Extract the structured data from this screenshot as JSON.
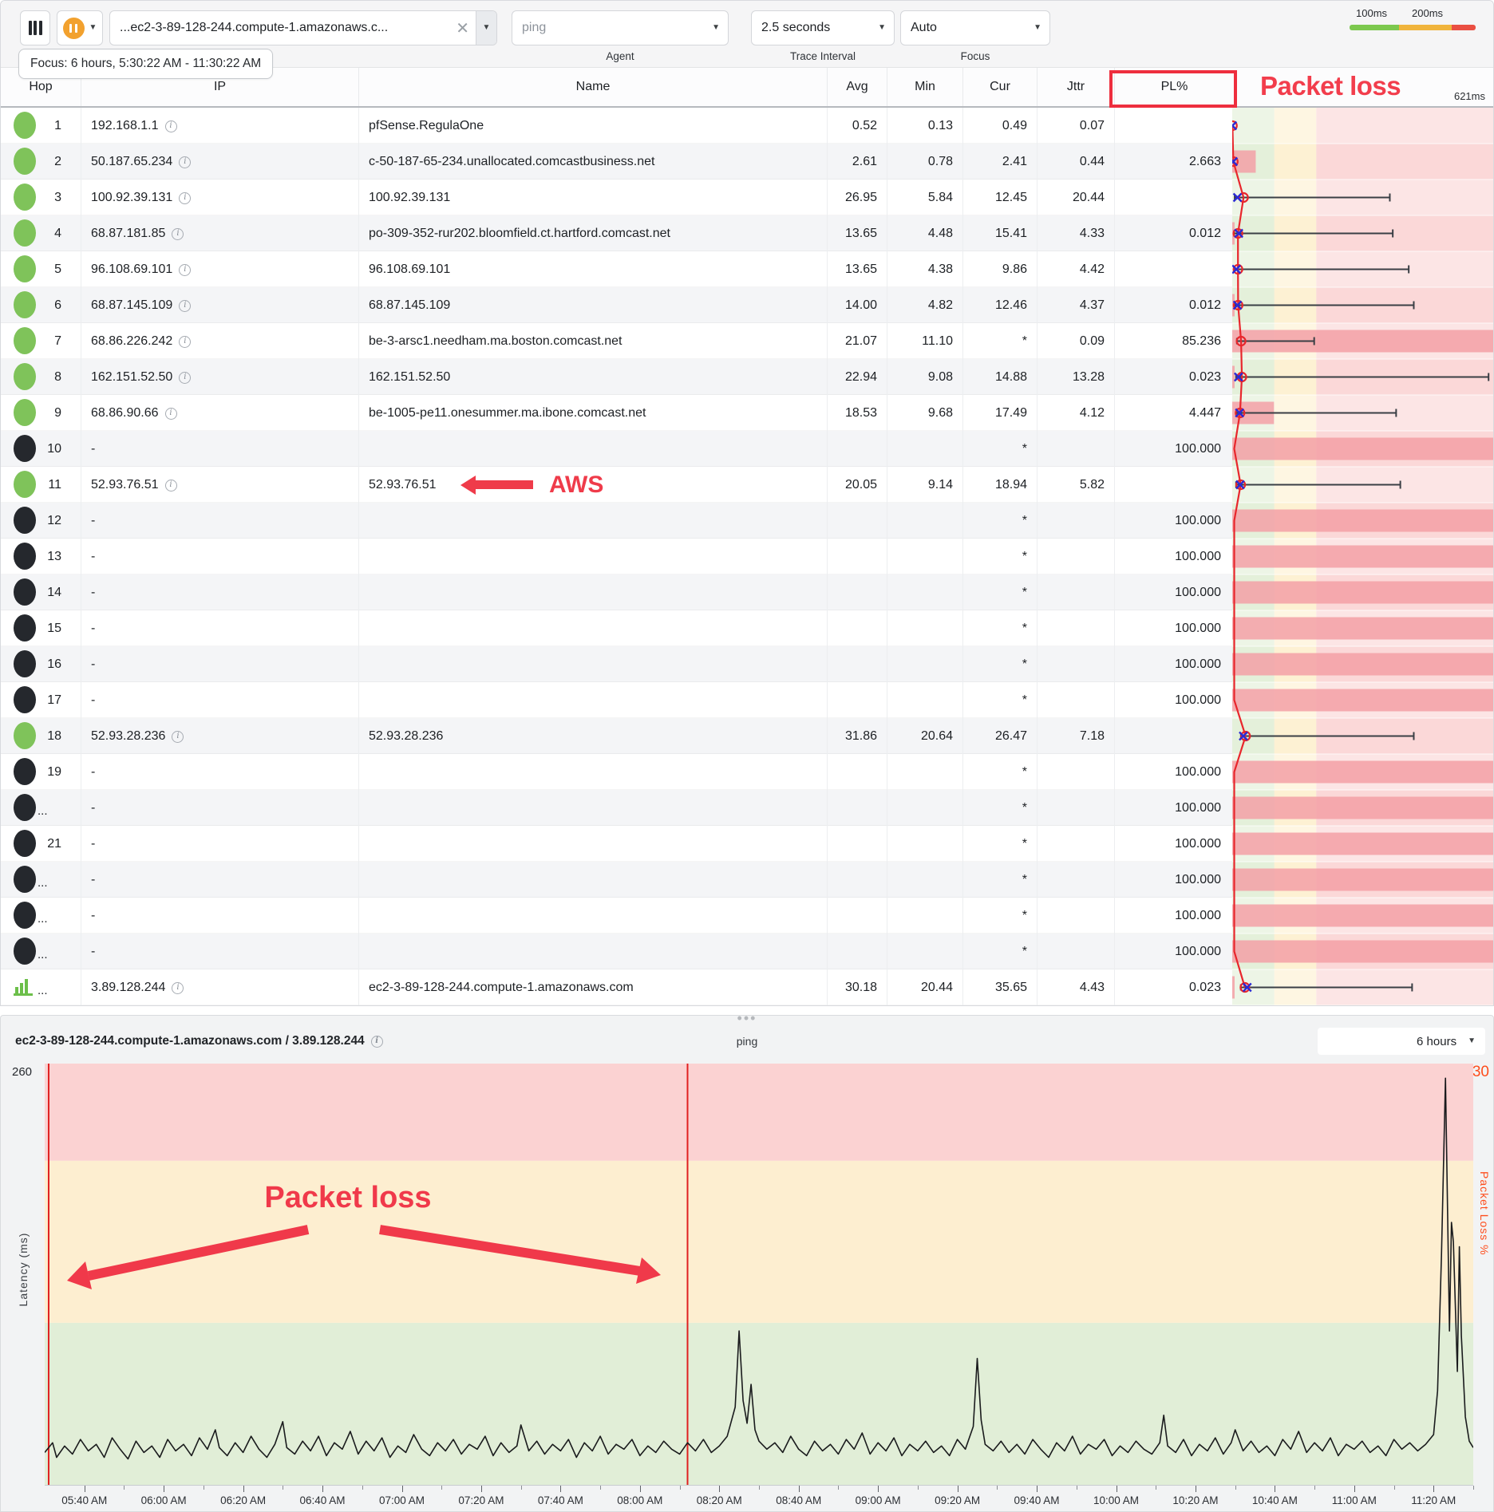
{
  "toolbar": {
    "target": {
      "value": "...ec2-3-89-128-244.compute-1.amazonaws.c..."
    },
    "agent": {
      "value": "ping",
      "label": "Agent"
    },
    "trace_interval": {
      "value": "2.5 seconds",
      "label": "Trace Interval"
    },
    "focus": {
      "value": "Auto",
      "label": "Focus"
    },
    "legend": {
      "label_100": "100ms",
      "label_200": "200ms",
      "colors": [
        "#7cc84e",
        "#f0b43c",
        "#ea4f42"
      ]
    }
  },
  "focus_banner": "Focus: 6 hours, 5:30:22 AM - 11:30:22 AM",
  "annotations": {
    "pl_header": "Packet loss",
    "aws": "AWS",
    "chart_packet_loss": "Packet loss"
  },
  "table": {
    "headers": {
      "hop": "Hop",
      "ip": "IP",
      "name": "Name",
      "avg": "Avg",
      "min": "Min",
      "cur": "Cur",
      "jttr": "Jttr",
      "pl": "PL%"
    },
    "graph_scale_label": "621ms",
    "graph_scale_max_ms": 621,
    "zone_boundaries_ms": [
      100,
      200
    ],
    "rows": [
      {
        "hop": "1",
        "status": "up",
        "ip": "192.168.1.1",
        "info": true,
        "name": "pfSense.RegulaOne",
        "avg": "0.52",
        "min": "0.13",
        "cur": "0.49",
        "jttr": "0.07",
        "pl": "",
        "g": {
          "a": 0.52,
          "c": 0.49,
          "mn": 0.13,
          "mx": 5,
          "loss": 0
        }
      },
      {
        "hop": "2",
        "status": "up",
        "ip": "50.187.65.234",
        "info": true,
        "name": "c-50-187-65-234.unallocated.comcastbusiness.net",
        "avg": "2.61",
        "min": "0.78",
        "cur": "2.41",
        "jttr": "0.44",
        "pl": "2.663",
        "g": {
          "a": 2.61,
          "c": 2.41,
          "mn": 0.78,
          "mx": 10,
          "loss": 0.09
        }
      },
      {
        "hop": "3",
        "status": "up",
        "ip": "100.92.39.131",
        "info": true,
        "name": "100.92.39.131",
        "avg": "26.95",
        "min": "5.84",
        "cur": "12.45",
        "jttr": "20.44",
        "pl": "",
        "g": {
          "a": 26.95,
          "c": 12.45,
          "mn": 5.84,
          "mx": 375,
          "loss": 0
        }
      },
      {
        "hop": "4",
        "status": "up",
        "ip": "68.87.181.85",
        "info": true,
        "name": "po-309-352-rur202.bloomfield.ct.hartford.comcast.net",
        "avg": "13.65",
        "min": "4.48",
        "cur": "15.41",
        "jttr": "4.33",
        "pl": "0.012",
        "g": {
          "a": 13.65,
          "c": 15.41,
          "mn": 4.48,
          "mx": 382,
          "loss": 0.008
        }
      },
      {
        "hop": "5",
        "status": "up",
        "ip": "96.108.69.101",
        "info": true,
        "name": "96.108.69.101",
        "avg": "13.65",
        "min": "4.38",
        "cur": "9.86",
        "jttr": "4.42",
        "pl": "",
        "g": {
          "a": 13.65,
          "c": 9.86,
          "mn": 4.38,
          "mx": 420,
          "loss": 0
        }
      },
      {
        "hop": "6",
        "status": "up",
        "ip": "68.87.145.109",
        "info": true,
        "name": "68.87.145.109",
        "avg": "14.00",
        "min": "4.82",
        "cur": "12.46",
        "jttr": "4.37",
        "pl": "0.012",
        "g": {
          "a": 14.0,
          "c": 12.46,
          "mn": 4.82,
          "mx": 432,
          "loss": 0.008
        }
      },
      {
        "hop": "7",
        "status": "up",
        "ip": "68.86.226.242",
        "info": true,
        "name": "be-3-arsc1.needham.ma.boston.comcast.net",
        "avg": "21.07",
        "min": "11.10",
        "cur": "*",
        "jttr": "0.09",
        "pl": "85.236",
        "g": {
          "a": 21.07,
          "c": null,
          "mn": 11.1,
          "mx": 195,
          "loss": 1
        }
      },
      {
        "hop": "8",
        "status": "up",
        "ip": "162.151.52.50",
        "info": true,
        "name": "162.151.52.50",
        "avg": "22.94",
        "min": "9.08",
        "cur": "14.88",
        "jttr": "13.28",
        "pl": "0.023",
        "g": {
          "a": 22.94,
          "c": 14.88,
          "mn": 9.08,
          "mx": 610,
          "loss": 0.008
        }
      },
      {
        "hop": "9",
        "status": "up",
        "ip": "68.86.90.66",
        "info": true,
        "name": "be-1005-pe11.onesummer.ma.ibone.comcast.net",
        "avg": "18.53",
        "min": "9.68",
        "cur": "17.49",
        "jttr": "4.12",
        "pl": "4.447",
        "g": {
          "a": 18.53,
          "c": 17.49,
          "mn": 9.68,
          "mx": 390,
          "loss": 0.16
        }
      },
      {
        "hop": "10",
        "status": "down",
        "ip": "-",
        "info": false,
        "name": "",
        "avg": "",
        "min": "",
        "cur": "*",
        "jttr": "",
        "pl": "100.000",
        "g": {
          "loss": 1
        }
      },
      {
        "hop": "11",
        "status": "up",
        "ip": "52.93.76.51",
        "info": true,
        "name": "52.93.76.51",
        "avg": "20.05",
        "min": "9.14",
        "cur": "18.94",
        "jttr": "5.82",
        "pl": "",
        "aws": true,
        "g": {
          "a": 20.05,
          "c": 18.94,
          "mn": 9.14,
          "mx": 400,
          "loss": 0
        }
      },
      {
        "hop": "12",
        "status": "down",
        "ip": "-",
        "info": false,
        "name": "",
        "avg": "",
        "min": "",
        "cur": "*",
        "jttr": "",
        "pl": "100.000",
        "g": {
          "loss": 1
        }
      },
      {
        "hop": "13",
        "status": "down",
        "ip": "-",
        "info": false,
        "name": "",
        "avg": "",
        "min": "",
        "cur": "*",
        "jttr": "",
        "pl": "100.000",
        "g": {
          "loss": 1
        }
      },
      {
        "hop": "14",
        "status": "down",
        "ip": "-",
        "info": false,
        "name": "",
        "avg": "",
        "min": "",
        "cur": "*",
        "jttr": "",
        "pl": "100.000",
        "g": {
          "loss": 1
        }
      },
      {
        "hop": "15",
        "status": "down",
        "ip": "-",
        "info": false,
        "name": "",
        "avg": "",
        "min": "",
        "cur": "*",
        "jttr": "",
        "pl": "100.000",
        "g": {
          "loss": 1
        }
      },
      {
        "hop": "16",
        "status": "down",
        "ip": "-",
        "info": false,
        "name": "",
        "avg": "",
        "min": "",
        "cur": "*",
        "jttr": "",
        "pl": "100.000",
        "g": {
          "loss": 1
        }
      },
      {
        "hop": "17",
        "status": "down",
        "ip": "-",
        "info": false,
        "name": "",
        "avg": "",
        "min": "",
        "cur": "*",
        "jttr": "",
        "pl": "100.000",
        "g": {
          "loss": 1
        }
      },
      {
        "hop": "18",
        "status": "up",
        "ip": "52.93.28.236",
        "info": true,
        "name": "52.93.28.236",
        "avg": "31.86",
        "min": "20.64",
        "cur": "26.47",
        "jttr": "7.18",
        "pl": "",
        "g": {
          "a": 31.86,
          "c": 26.47,
          "mn": 20.64,
          "mx": 432,
          "loss": 0
        }
      },
      {
        "hop": "19",
        "status": "down",
        "ip": "-",
        "info": false,
        "name": "",
        "avg": "",
        "min": "",
        "cur": "*",
        "jttr": "",
        "pl": "100.000",
        "g": {
          "loss": 1
        }
      },
      {
        "hop": "...",
        "status": "down",
        "ip": "-",
        "info": false,
        "name": "",
        "avg": "",
        "min": "",
        "cur": "*",
        "jttr": "",
        "pl": "100.000",
        "g": {
          "loss": 1
        }
      },
      {
        "hop": "21",
        "status": "down",
        "ip": "-",
        "info": false,
        "name": "",
        "avg": "",
        "min": "",
        "cur": "*",
        "jttr": "",
        "pl": "100.000",
        "g": {
          "loss": 1
        }
      },
      {
        "hop": "...",
        "status": "down",
        "ip": "-",
        "info": false,
        "name": "",
        "avg": "",
        "min": "",
        "cur": "*",
        "jttr": "",
        "pl": "100.000",
        "g": {
          "loss": 1
        }
      },
      {
        "hop": "...",
        "status": "down",
        "ip": "-",
        "info": false,
        "name": "",
        "avg": "",
        "min": "",
        "cur": "*",
        "jttr": "",
        "pl": "100.000",
        "g": {
          "loss": 1
        }
      },
      {
        "hop": "...",
        "status": "down",
        "ip": "-",
        "info": false,
        "name": "",
        "avg": "",
        "min": "",
        "cur": "*",
        "jttr": "",
        "pl": "100.000",
        "g": {
          "loss": 1
        }
      },
      {
        "hop": "...",
        "status": "target",
        "ip": "3.89.128.244",
        "info": true,
        "name": "ec2-3-89-128-244.compute-1.amazonaws.com",
        "avg": "30.18",
        "min": "20.44",
        "cur": "35.65",
        "jttr": "4.43",
        "pl": "0.023",
        "g": {
          "a": 30.18,
          "c": 35.65,
          "mn": 20.44,
          "mx": 428,
          "loss": 0.008
        }
      }
    ]
  },
  "chart_data": {
    "type": "line",
    "title": "ec2-3-89-128-244.compute-1.amazonaws.com / 3.89.128.244",
    "trace_type_label": "ping",
    "range_selector": "6 hours",
    "ylabel_left": "Latency (ms)",
    "ylabel_right": "Packet Loss %",
    "ylim_left": [
      0,
      260
    ],
    "ylim_right": [
      0,
      30
    ],
    "y_max_left_label": "260",
    "y_max_right_label": "30",
    "x_start_time": "5:30 AM",
    "x_minutes_total": 360,
    "zones_ms": {
      "green": [
        0,
        100
      ],
      "orange": [
        100,
        200
      ],
      "red": [
        200,
        260
      ]
    },
    "packet_loss_event_minutes": [
      1,
      162
    ],
    "x_ticks": [
      {
        "label": "05:40 AM",
        "minute": 10
      },
      {
        "label": "06:00 AM",
        "minute": 30
      },
      {
        "label": "06:20 AM",
        "minute": 50
      },
      {
        "label": "06:40 AM",
        "minute": 70
      },
      {
        "label": "07:00 AM",
        "minute": 90
      },
      {
        "label": "07:20 AM",
        "minute": 110
      },
      {
        "label": "07:40 AM",
        "minute": 130
      },
      {
        "label": "08:00 AM",
        "minute": 150
      },
      {
        "label": "08:20 AM",
        "minute": 170
      },
      {
        "label": "08:40 AM",
        "minute": 190
      },
      {
        "label": "09:00 AM",
        "minute": 210
      },
      {
        "label": "09:20 AM",
        "minute": 230
      },
      {
        "label": "09:40 AM",
        "minute": 250
      },
      {
        "label": "10:00 AM",
        "minute": 270
      },
      {
        "label": "10:20 AM",
        "minute": 290
      },
      {
        "label": "10:40 AM",
        "minute": 310
      },
      {
        "label": "11:00 AM",
        "minute": 330
      },
      {
        "label": "11:20 AM",
        "minute": 350
      }
    ],
    "latency_points": [
      [
        0,
        20
      ],
      [
        2,
        26
      ],
      [
        3,
        17
      ],
      [
        5,
        24
      ],
      [
        7,
        19
      ],
      [
        9,
        28
      ],
      [
        11,
        21
      ],
      [
        13,
        25
      ],
      [
        15,
        17
      ],
      [
        17,
        29
      ],
      [
        19,
        22
      ],
      [
        21,
        16
      ],
      [
        23,
        27
      ],
      [
        25,
        20
      ],
      [
        27,
        24
      ],
      [
        29,
        17
      ],
      [
        31,
        28
      ],
      [
        33,
        21
      ],
      [
        35,
        25
      ],
      [
        37,
        18
      ],
      [
        39,
        29
      ],
      [
        41,
        22
      ],
      [
        43,
        34
      ],
      [
        44,
        23
      ],
      [
        46,
        18
      ],
      [
        48,
        26
      ],
      [
        50,
        20
      ],
      [
        52,
        30
      ],
      [
        54,
        22
      ],
      [
        56,
        17
      ],
      [
        58,
        25
      ],
      [
        60,
        39
      ],
      [
        61,
        23
      ],
      [
        63,
        19
      ],
      [
        65,
        27
      ],
      [
        67,
        21
      ],
      [
        69,
        30
      ],
      [
        71,
        18
      ],
      [
        73,
        26
      ],
      [
        75,
        22
      ],
      [
        77,
        33
      ],
      [
        79,
        19
      ],
      [
        81,
        27
      ],
      [
        83,
        21
      ],
      [
        85,
        29
      ],
      [
        87,
        17
      ],
      [
        89,
        24
      ],
      [
        91,
        20
      ],
      [
        93,
        31
      ],
      [
        95,
        22
      ],
      [
        97,
        18
      ],
      [
        99,
        26
      ],
      [
        101,
        21
      ],
      [
        103,
        28
      ],
      [
        105,
        19
      ],
      [
        107,
        25
      ],
      [
        109,
        22
      ],
      [
        111,
        30
      ],
      [
        113,
        18
      ],
      [
        115,
        26
      ],
      [
        117,
        20
      ],
      [
        119,
        24
      ],
      [
        120,
        37
      ],
      [
        122,
        21
      ],
      [
        124,
        27
      ],
      [
        126,
        19
      ],
      [
        128,
        25
      ],
      [
        130,
        21
      ],
      [
        132,
        28
      ],
      [
        134,
        17
      ],
      [
        136,
        26
      ],
      [
        138,
        21
      ],
      [
        140,
        30
      ],
      [
        142,
        19
      ],
      [
        144,
        25
      ],
      [
        146,
        22
      ],
      [
        148,
        28
      ],
      [
        150,
        18
      ],
      [
        152,
        24
      ],
      [
        154,
        20
      ],
      [
        156,
        27
      ],
      [
        158,
        22
      ],
      [
        160,
        19
      ],
      [
        162,
        26
      ],
      [
        164,
        21
      ],
      [
        166,
        28
      ],
      [
        168,
        20
      ],
      [
        170,
        24
      ],
      [
        172,
        30
      ],
      [
        174,
        48
      ],
      [
        175,
        95
      ],
      [
        176,
        52
      ],
      [
        177,
        38
      ],
      [
        178,
        62
      ],
      [
        179,
        34
      ],
      [
        180,
        27
      ],
      [
        182,
        22
      ],
      [
        184,
        26
      ],
      [
        186,
        20
      ],
      [
        188,
        30
      ],
      [
        190,
        22
      ],
      [
        192,
        18
      ],
      [
        194,
        27
      ],
      [
        196,
        21
      ],
      [
        198,
        25
      ],
      [
        200,
        19
      ],
      [
        202,
        28
      ],
      [
        204,
        22
      ],
      [
        206,
        32
      ],
      [
        208,
        19
      ],
      [
        210,
        26
      ],
      [
        212,
        21
      ],
      [
        214,
        29
      ],
      [
        216,
        18
      ],
      [
        218,
        25
      ],
      [
        220,
        21
      ],
      [
        222,
        27
      ],
      [
        224,
        20
      ],
      [
        226,
        24
      ],
      [
        228,
        18
      ],
      [
        230,
        28
      ],
      [
        232,
        22
      ],
      [
        234,
        36
      ],
      [
        235,
        78
      ],
      [
        236,
        40
      ],
      [
        237,
        25
      ],
      [
        239,
        21
      ],
      [
        241,
        27
      ],
      [
        243,
        20
      ],
      [
        245,
        25
      ],
      [
        247,
        19
      ],
      [
        249,
        28
      ],
      [
        251,
        22
      ],
      [
        253,
        17
      ],
      [
        255,
        26
      ],
      [
        257,
        21
      ],
      [
        259,
        30
      ],
      [
        261,
        19
      ],
      [
        263,
        25
      ],
      [
        265,
        22
      ],
      [
        267,
        28
      ],
      [
        269,
        18
      ],
      [
        271,
        24
      ],
      [
        273,
        20
      ],
      [
        275,
        27
      ],
      [
        277,
        22
      ],
      [
        279,
        19
      ],
      [
        281,
        26
      ],
      [
        282,
        43
      ],
      [
        283,
        24
      ],
      [
        285,
        20
      ],
      [
        287,
        28
      ],
      [
        289,
        18
      ],
      [
        291,
        25
      ],
      [
        293,
        21
      ],
      [
        295,
        29
      ],
      [
        297,
        19
      ],
      [
        299,
        26
      ],
      [
        300,
        34
      ],
      [
        302,
        21
      ],
      [
        304,
        27
      ],
      [
        306,
        20
      ],
      [
        308,
        24
      ],
      [
        310,
        18
      ],
      [
        312,
        28
      ],
      [
        314,
        22
      ],
      [
        316,
        33
      ],
      [
        318,
        20
      ],
      [
        320,
        26
      ],
      [
        322,
        21
      ],
      [
        324,
        29
      ],
      [
        326,
        18
      ],
      [
        328,
        25
      ],
      [
        330,
        22
      ],
      [
        332,
        27
      ],
      [
        334,
        20
      ],
      [
        336,
        24
      ],
      [
        338,
        18
      ],
      [
        340,
        28
      ],
      [
        342,
        22
      ],
      [
        344,
        26
      ],
      [
        346,
        21
      ],
      [
        348,
        25
      ],
      [
        350,
        31
      ],
      [
        351,
        58
      ],
      [
        352,
        142
      ],
      [
        353,
        251
      ],
      [
        354,
        95
      ],
      [
        354.5,
        162
      ],
      [
        355,
        150
      ],
      [
        356,
        70
      ],
      [
        356.5,
        147
      ],
      [
        357,
        92
      ],
      [
        358,
        42
      ],
      [
        359,
        27
      ],
      [
        360,
        23
      ]
    ]
  },
  "colors": {
    "status_up": "#7fc35a",
    "status_down": "#25282d",
    "trace_red": "#e8262c",
    "marker_blue": "#2a2ad4",
    "loss_bar": "#f3a0a6",
    "annotation_red": "#f0394a",
    "packet_loss_axis": "#fe4d1c",
    "zone_green": "#e4f0da",
    "zone_yellow": "#fdf1d3",
    "zone_pink": "#fbd8d8",
    "chart_zone_green": "#e1eed7",
    "chart_zone_orange": "#fdeed0",
    "chart_zone_red": "#fbd2d2"
  }
}
